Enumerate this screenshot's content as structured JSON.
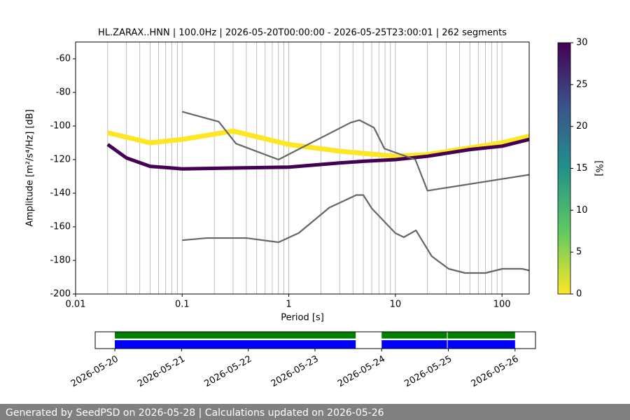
{
  "chart_data": [
    {
      "type": "line",
      "title": "HL.ZARAX..HNN | 100.0Hz | 2026-05-20T00:00:00 - 2026-05-25T23:00:01 | 262 segments",
      "xlabel": "Period [s]",
      "ylabel": "Amplitude [m²/s⁴/Hz] [dB]",
      "xscale": "log",
      "grid": true,
      "xlim": [
        0.01,
        180
      ],
      "ylim": [
        -200,
        -50
      ],
      "xticks": [
        0.01,
        0.1,
        1,
        10,
        100
      ],
      "yticks": [
        -60,
        -80,
        -100,
        -120,
        -140,
        -160,
        -180,
        -200
      ],
      "series": [
        {
          "color": "#fde725",
          "width": 7,
          "x": [
            0.02,
            0.05,
            0.1,
            0.3,
            1,
            3,
            10,
            20,
            50,
            100,
            180
          ],
          "values": [
            -104,
            -110,
            -108,
            -103,
            -111,
            -115,
            -118,
            -117,
            -113,
            -110,
            -106
          ]
        },
        {
          "color": "#440154",
          "width": 5,
          "x": [
            0.02,
            0.03,
            0.05,
            0.1,
            0.3,
            1,
            3,
            5,
            10,
            20,
            50,
            100,
            180
          ],
          "values": [
            -111,
            -119,
            -124,
            -125.5,
            -125,
            -124.5,
            -122,
            -121,
            -120,
            -118,
            -114,
            -112,
            -108
          ]
        },
        {
          "color": "#666666",
          "width": 2.2,
          "x": [
            0.1,
            0.22,
            0.32,
            0.8,
            3.8,
            4.6,
            6.3,
            7.9,
            15.4,
            20,
            180
          ],
          "values": [
            -91.5,
            -97.4,
            -110.5,
            -120,
            -98,
            -96.5,
            -101,
            -113.5,
            -120,
            -138.5,
            -129
          ]
        },
        {
          "color": "#666666",
          "width": 2.2,
          "x": [
            0.1,
            0.17,
            0.4,
            0.8,
            1.24,
            2.4,
            4.3,
            5,
            6,
            10,
            12,
            15.6,
            21.9,
            31.6,
            45,
            70,
            101,
            154,
            180
          ],
          "values": [
            -168,
            -166.7,
            -166.7,
            -169.2,
            -163.7,
            -148.6,
            -141.1,
            -141.1,
            -149,
            -163.8,
            -166.2,
            -162.1,
            -177.5,
            -185,
            -187.5,
            -187.5,
            -185,
            -185,
            -186
          ]
        }
      ],
      "colorbar": {
        "label": "[%]",
        "lim": [
          0,
          30
        ],
        "ticks": [
          0,
          5,
          10,
          15,
          20,
          25,
          30
        ],
        "colors": [
          "#fde725",
          "#5ec962",
          "#21918c",
          "#3b528b",
          "#440154"
        ]
      }
    },
    {
      "type": "timeline",
      "xlim": [
        "2026-05-19T16:56",
        "2026-05-26T07:21"
      ],
      "xticks": [
        "2026-05-20",
        "2026-05-21",
        "2026-05-22",
        "2026-05-23",
        "2026-05-24",
        "2026-05-25",
        "2026-05-26"
      ],
      "series": [
        {
          "color": "#008000",
          "ranges": [
            [
              "2026-05-20T00:00",
              "2026-05-23T14:40"
            ],
            [
              "2026-05-24T00:00",
              "2026-05-24T23:30"
            ],
            [
              "2026-05-24T23:45",
              "2026-05-26T00:00"
            ]
          ]
        },
        {
          "color": "#0000ff",
          "ranges": [
            [
              "2026-05-20T00:00",
              "2026-05-23T14:40"
            ],
            [
              "2026-05-24T00:00",
              "2026-05-24T23:30"
            ],
            [
              "2026-05-24T23:45",
              "2026-05-26T00:00"
            ]
          ]
        }
      ]
    }
  ],
  "footer": "Generated by SeedPSD on 2026-05-28 | Calculations updated on 2026-05-26"
}
